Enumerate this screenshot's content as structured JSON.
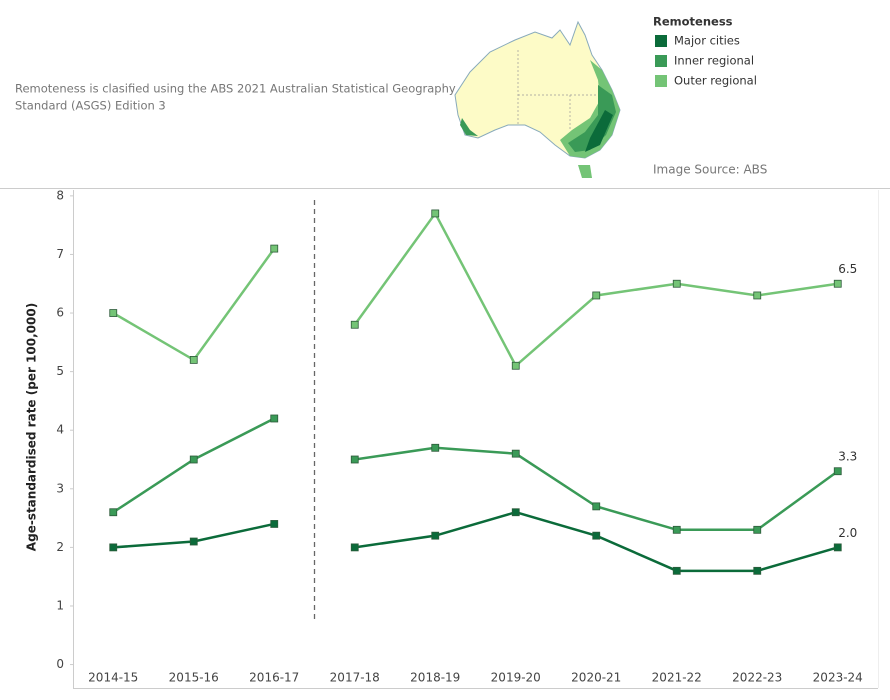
{
  "chart_data": {
    "type": "line",
    "y_label": "Age-standardised rate (per 100,000)",
    "note": "Remoteness is clasified using the ABS 2021 Australian Statistical Geography Standard (ASGS) Edition 3",
    "image_source": "Image Source: ABS",
    "legend_title": "Remoteness",
    "legend_position": "top-right",
    "categories": [
      "2014-15",
      "2015-16",
      "2016-17",
      "2017-18",
      "2018-19",
      "2019-20",
      "2020-21",
      "2021-22",
      "2022-23",
      "2023-24"
    ],
    "break_after_index": 2,
    "series": [
      {
        "name": "Major cities",
        "color": "#0b6b3a",
        "values": [
          2.0,
          2.1,
          2.4,
          2.0,
          2.2,
          2.6,
          2.2,
          1.6,
          1.6,
          2.0
        ],
        "value_labels": [
          null,
          null,
          null,
          null,
          null,
          null,
          null,
          null,
          null,
          "2.0"
        ]
      },
      {
        "name": "Inner regional",
        "color": "#3a9a57",
        "values": [
          2.6,
          3.5,
          4.2,
          3.5,
          3.7,
          3.6,
          2.7,
          2.3,
          2.3,
          3.3
        ],
        "value_labels": [
          null,
          null,
          null,
          null,
          null,
          null,
          null,
          null,
          null,
          "3.3"
        ]
      },
      {
        "name": "Outer regional",
        "color": "#74c476",
        "values": [
          6.0,
          5.2,
          7.1,
          5.8,
          7.7,
          5.1,
          6.3,
          6.5,
          6.3,
          6.5
        ],
        "value_labels": [
          null,
          null,
          null,
          null,
          null,
          null,
          null,
          null,
          null,
          "6.5"
        ]
      }
    ],
    "ylim": [
      -0.4,
      8.1
    ],
    "yticks": [
      0,
      1,
      2,
      3,
      4,
      5,
      6,
      7,
      8
    ],
    "grid": false
  }
}
